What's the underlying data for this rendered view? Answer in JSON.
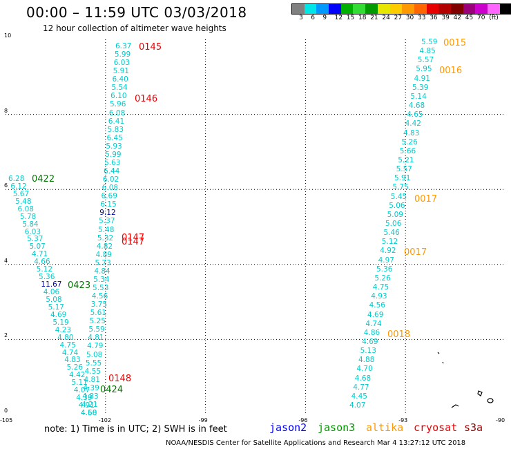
{
  "header": {
    "title": "00:00 – 11:59 UTC 03/03/2018",
    "subtitle": "12 hour collection of altimeter wave heights"
  },
  "colorbar": {
    "colors": [
      "#808080",
      "#00e5e5",
      "#0099ff",
      "#0000ff",
      "#00b000",
      "#33dd33",
      "#009900",
      "#e6e600",
      "#ffcc00",
      "#ff9900",
      "#ff6600",
      "#e60000",
      "#b30000",
      "#800000",
      "#99007a",
      "#cc00cc",
      "#ff66ff",
      "#000000"
    ],
    "labels": [
      "3",
      "6",
      "9",
      "12",
      "15",
      "18",
      "21",
      "24",
      "27",
      "30",
      "33",
      "36",
      "39",
      "42",
      "45",
      "70",
      "(ft)"
    ]
  },
  "axes": {
    "lat_labels": [
      "10",
      "8",
      "6",
      "4",
      "2",
      "0"
    ],
    "lon_labels": [
      "-105",
      "-102",
      "-99",
      "-96",
      "-93",
      "-90"
    ],
    "xlim": [
      -105,
      -90
    ],
    "ylim": [
      0,
      10
    ]
  },
  "colors": {
    "cyan": "#00cccc",
    "darkblue": "#0000aa",
    "red": "#ee0000",
    "green": "#007700",
    "orange": "#ff9900",
    "jason2": "#0000ff",
    "jason3": "#009900",
    "altika": "#ff9900",
    "cryosat": "#ee0000",
    "s3a": "#990000"
  },
  "tracks": {
    "t1": {
      "values": [
        "6.37",
        "5.99",
        "6.03",
        "5.91",
        "6.40",
        "5.54",
        "6.10",
        "5.96",
        "6.08",
        "6.41",
        "5.83",
        "6.45",
        "5.93",
        "5.99",
        "5.63",
        "6.44",
        "6.02",
        "6.08",
        "6.69",
        "6.15",
        "9.12",
        "5.37",
        "5.48",
        "5.32",
        "4.82",
        "4.89",
        "5.73",
        "4.84",
        "5.34",
        "5.53",
        "4.56",
        "3.75",
        "5.61",
        "5.25",
        "5.59",
        "4.81",
        "4.79",
        "5.08",
        "5.55",
        "4.55",
        "4.81",
        "4.39",
        "4.83",
        "4.21",
        "4.58"
      ],
      "colors": [
        "c",
        "c",
        "c",
        "c",
        "c",
        "c",
        "c",
        "c",
        "c",
        "c",
        "c",
        "c",
        "c",
        "c",
        "c",
        "c",
        "c",
        "c",
        "c",
        "c",
        "b",
        "c",
        "c",
        "c",
        "c",
        "c",
        "c",
        "c",
        "c",
        "c",
        "c",
        "c",
        "c",
        "c",
        "c",
        "c",
        "c",
        "c",
        "c",
        "c",
        "c",
        "c",
        "c",
        "c",
        "c"
      ]
    },
    "t2": {
      "values": [
        "6.28",
        "6.12",
        "5.67",
        "5.48",
        "6.08",
        "5.78",
        "5.84",
        "6.03",
        "5.37",
        "5.07",
        "4.71",
        "4.66",
        "5.12",
        "5.36",
        "11.67",
        "4.06",
        "5.08",
        "5.17",
        "4.69",
        "5.19",
        "4.23",
        "4.80",
        "4.75",
        "4.74",
        "4.83",
        "5.26",
        "4.42",
        "5.11",
        "4.07",
        "4.39",
        "4.91",
        "4.60"
      ],
      "colors": [
        "c",
        "c",
        "c",
        "c",
        "c",
        "c",
        "c",
        "c",
        "c",
        "c",
        "c",
        "c",
        "c",
        "c",
        "b",
        "c",
        "c",
        "c",
        "c",
        "c",
        "c",
        "c",
        "c",
        "c",
        "c",
        "c",
        "c",
        "c",
        "c",
        "c",
        "c",
        "c"
      ]
    },
    "t3": {
      "values": [
        "5.59",
        "4.85",
        "5.57",
        "5.95",
        "4.91",
        "5.39",
        "5.14",
        "4.68",
        "4.65",
        "4.42",
        "4.83",
        "5.26",
        "5.66",
        "5.21",
        "5.57",
        "5.91",
        "5.75",
        "5.45",
        "5.06",
        "5.09",
        "5.06",
        "5.46",
        "5.12",
        "4.92",
        "4.97",
        "5.36",
        "5.26",
        "4.75",
        "4.93",
        "4.56",
        "4.69",
        "4.74",
        "4.86",
        "4.69",
        "5.13",
        "4.88",
        "4.70",
        "4.68",
        "4.77",
        "4.45",
        "4.07"
      ]
    }
  },
  "pass_labels": [
    {
      "text": "0145",
      "color": "red"
    },
    {
      "text": "0146",
      "color": "red"
    },
    {
      "text": "0147",
      "color": "red"
    },
    {
      "text": "0147",
      "color": "red"
    },
    {
      "text": "0148",
      "color": "red"
    },
    {
      "text": "0422",
      "color": "green"
    },
    {
      "text": "0423",
      "color": "green"
    },
    {
      "text": "0424",
      "color": "green"
    },
    {
      "text": "0015",
      "color": "orange"
    },
    {
      "text": "0016",
      "color": "orange"
    },
    {
      "text": "0017",
      "color": "orange"
    },
    {
      "text": "0017",
      "color": "orange"
    },
    {
      "text": "0018",
      "color": "orange"
    }
  ],
  "note": "note: 1) Time is in UTC; 2) SWH is in feet",
  "legend": {
    "jason2": "jason2",
    "jason3": "jason3",
    "altika": "altika",
    "cryosat": "cryosat",
    "s3a": "s3a"
  },
  "footer": "NOAA/NESDIS Center for Satellite Applications and Research   Mar  4 13:27:12 UTC 2018"
}
